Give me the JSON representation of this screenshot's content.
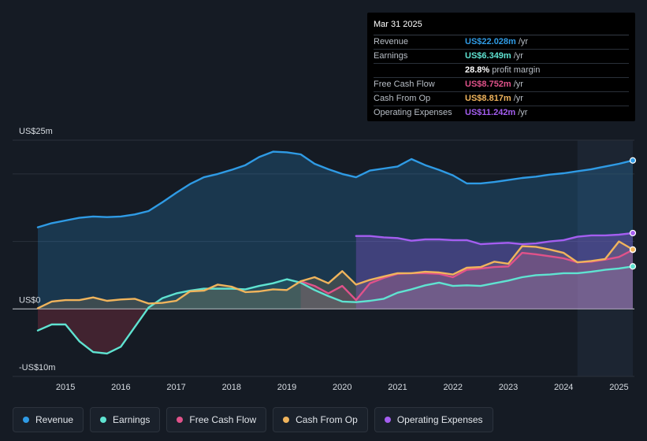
{
  "tooltip": {
    "date": "Mar 31 2025",
    "rows": [
      {
        "label": "Revenue",
        "value": "US$22.028m",
        "unit": "/yr",
        "color": "#2f9be5"
      },
      {
        "label": "Earnings",
        "value": "US$6.349m",
        "unit": "/yr",
        "color": "#5fe3d1"
      },
      {
        "label": "",
        "value": "28.8%",
        "unit": "profit margin",
        "color": "#ffffff"
      },
      {
        "label": "Free Cash Flow",
        "value": "US$8.752m",
        "unit": "/yr",
        "color": "#e0528a"
      },
      {
        "label": "Cash From Op",
        "value": "US$8.817m",
        "unit": "/yr",
        "color": "#f0b45c"
      },
      {
        "label": "Operating Expenses",
        "value": "US$11.242m",
        "unit": "/yr",
        "color": "#a45ef0"
      }
    ]
  },
  "legend": [
    {
      "label": "Revenue",
      "color": "#2f9be5"
    },
    {
      "label": "Earnings",
      "color": "#5fe3d1"
    },
    {
      "label": "Free Cash Flow",
      "color": "#e0528a"
    },
    {
      "label": "Cash From Op",
      "color": "#f0b45c"
    },
    {
      "label": "Operating Expenses",
      "color": "#a45ef0"
    }
  ],
  "chart_data": {
    "type": "area",
    "y_tick_labels": [
      "US$25m",
      "US$0",
      "-US$10m"
    ],
    "y_ticks": [
      25,
      0,
      -10
    ],
    "ylim": [
      -10,
      25
    ],
    "xlim": [
      2014.5,
      2025.25
    ],
    "x_tick_labels": [
      "2015",
      "2016",
      "2017",
      "2018",
      "2019",
      "2020",
      "2021",
      "2022",
      "2023",
      "2024",
      "2025"
    ],
    "x_ticks": [
      2015,
      2016,
      2017,
      2018,
      2019,
      2020,
      2021,
      2022,
      2023,
      2024,
      2025
    ],
    "grid": true,
    "forecast_shade_start": 2024.25,
    "series": [
      {
        "name": "Revenue",
        "color": "#2f9be5",
        "x": [
          2014.5,
          2014.75,
          2015.0,
          2015.25,
          2015.5,
          2015.75,
          2016.0,
          2016.25,
          2016.5,
          2016.75,
          2017.0,
          2017.25,
          2017.5,
          2017.75,
          2018.0,
          2018.25,
          2018.5,
          2018.75,
          2019.0,
          2019.25,
          2019.5,
          2019.75,
          2020.0,
          2020.25,
          2020.5,
          2020.75,
          2021.0,
          2021.25,
          2021.5,
          2021.75,
          2022.0,
          2022.25,
          2022.5,
          2022.75,
          2023.0,
          2023.25,
          2023.5,
          2023.75,
          2024.0,
          2024.25,
          2024.5,
          2024.75,
          2025.0,
          2025.25
        ],
        "values": [
          12.1,
          12.7,
          13.1,
          13.5,
          13.7,
          13.6,
          13.7,
          14.0,
          14.5,
          15.8,
          17.2,
          18.5,
          19.5,
          20.0,
          20.6,
          21.3,
          22.5,
          23.3,
          23.2,
          22.9,
          21.5,
          20.7,
          20.0,
          19.5,
          20.5,
          20.8,
          21.1,
          22.2,
          21.3,
          20.6,
          19.8,
          18.6,
          18.6,
          18.8,
          19.1,
          19.4,
          19.6,
          19.9,
          20.1,
          20.4,
          20.7,
          21.1,
          21.5,
          22.0
        ]
      },
      {
        "name": "Earnings",
        "color": "#5fe3d1",
        "x": [
          2014.5,
          2014.75,
          2015.0,
          2015.25,
          2015.5,
          2015.75,
          2016.0,
          2016.25,
          2016.5,
          2016.75,
          2017.0,
          2017.25,
          2017.5,
          2017.75,
          2018.0,
          2018.25,
          2018.5,
          2018.75,
          2019.0,
          2019.25,
          2019.5,
          2019.75,
          2020.0,
          2020.25,
          2020.5,
          2020.75,
          2021.0,
          2021.25,
          2021.5,
          2021.75,
          2022.0,
          2022.25,
          2022.5,
          2022.75,
          2023.0,
          2023.25,
          2023.5,
          2023.75,
          2024.0,
          2024.25,
          2024.5,
          2024.75,
          2025.0,
          2025.25
        ],
        "values": [
          -3.2,
          -2.3,
          -2.3,
          -4.8,
          -6.4,
          -6.6,
          -5.6,
          -2.7,
          0.2,
          1.6,
          2.3,
          2.7,
          3.0,
          3.0,
          3.0,
          2.9,
          3.4,
          3.8,
          4.4,
          3.9,
          2.8,
          1.9,
          1.1,
          1.0,
          1.2,
          1.5,
          2.4,
          2.9,
          3.5,
          3.9,
          3.4,
          3.5,
          3.4,
          3.8,
          4.2,
          4.7,
          5.0,
          5.1,
          5.3,
          5.3,
          5.5,
          5.8,
          6.0,
          6.3
        ]
      },
      {
        "name": "Free Cash Flow",
        "color": "#e0528a",
        "x": [
          2019.25,
          2019.5,
          2019.75,
          2020.0,
          2020.25,
          2020.5,
          2020.75,
          2021.0,
          2021.25,
          2021.5,
          2021.75,
          2022.0,
          2022.25,
          2022.5,
          2022.75,
          2023.0,
          2023.25,
          2023.5,
          2023.75,
          2024.0,
          2024.25,
          2024.5,
          2024.75,
          2025.0,
          2025.25
        ],
        "values": [
          4.1,
          3.4,
          2.3,
          3.4,
          1.3,
          3.8,
          4.6,
          5.2,
          5.3,
          5.3,
          5.2,
          4.7,
          5.8,
          6.0,
          6.2,
          6.3,
          8.3,
          8.1,
          7.8,
          7.5,
          6.9,
          7.0,
          7.3,
          7.7,
          8.75
        ]
      },
      {
        "name": "Cash From Op",
        "color": "#f0b45c",
        "x": [
          2014.5,
          2014.75,
          2015.0,
          2015.25,
          2015.5,
          2015.75,
          2016.0,
          2016.25,
          2016.5,
          2016.75,
          2017.0,
          2017.25,
          2017.5,
          2017.75,
          2018.0,
          2018.25,
          2018.5,
          2018.75,
          2019.0,
          2019.25,
          2019.5,
          2019.75,
          2020.0,
          2020.25,
          2020.5,
          2020.75,
          2021.0,
          2021.25,
          2021.5,
          2021.75,
          2022.0,
          2022.25,
          2022.5,
          2022.75,
          2023.0,
          2023.25,
          2023.5,
          2023.75,
          2024.0,
          2024.25,
          2024.5,
          2024.75,
          2025.0,
          2025.25
        ],
        "values": [
          0.1,
          1.1,
          1.3,
          1.3,
          1.7,
          1.2,
          1.4,
          1.5,
          0.8,
          0.9,
          1.2,
          2.6,
          2.7,
          3.6,
          3.3,
          2.5,
          2.6,
          2.9,
          2.8,
          4.1,
          4.7,
          3.8,
          5.6,
          3.6,
          4.3,
          4.8,
          5.3,
          5.3,
          5.5,
          5.4,
          5.1,
          6.1,
          6.2,
          7.0,
          6.7,
          9.3,
          9.2,
          8.8,
          8.3,
          6.9,
          7.1,
          7.4,
          10.0,
          8.8
        ]
      },
      {
        "name": "Operating Expenses",
        "color": "#a45ef0",
        "x": [
          2020.25,
          2020.5,
          2020.75,
          2021.0,
          2021.25,
          2021.5,
          2021.75,
          2022.0,
          2022.25,
          2022.5,
          2022.75,
          2023.0,
          2023.25,
          2023.5,
          2023.75,
          2024.0,
          2024.25,
          2024.5,
          2024.75,
          2025.0,
          2025.25
        ],
        "values": [
          10.8,
          10.8,
          10.6,
          10.5,
          10.1,
          10.3,
          10.3,
          10.2,
          10.2,
          9.6,
          9.7,
          9.8,
          9.6,
          9.7,
          10.0,
          10.2,
          10.7,
          10.9,
          10.9,
          11.0,
          11.24
        ]
      }
    ]
  }
}
